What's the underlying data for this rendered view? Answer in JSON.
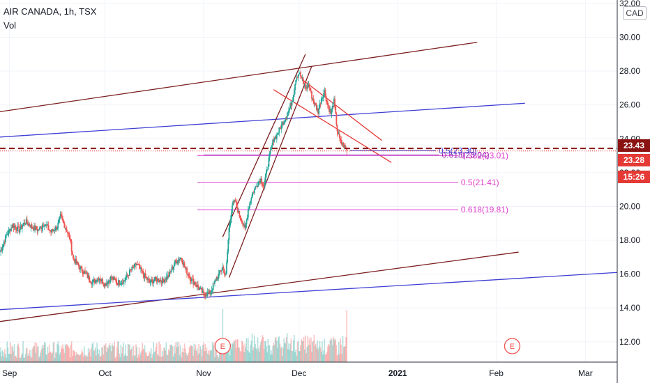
{
  "header": {
    "symbol_line": "AIR CANADA, 1h, TSX",
    "volume_label": "Vol",
    "currency": "CAD"
  },
  "price_tags": [
    {
      "label": "23.43",
      "price": 23.43,
      "color": "#8b1212"
    },
    {
      "label": "23.28",
      "price": 23.28,
      "color": "#e53935"
    },
    {
      "label": "15:26",
      "price": 21.8,
      "color": "#e53935"
    }
  ],
  "chart_data": {
    "type": "candlestick",
    "title": "AIR CANADA, 1h, TSX",
    "y_axis": {
      "ticks": [
        "12.00",
        "14.00",
        "16.00",
        "18.00",
        "20.00",
        "22.00",
        "24.00",
        "26.00",
        "28.00",
        "30.00",
        "32.00"
      ],
      "range": [
        10.8,
        32.2
      ]
    },
    "x_axis": {
      "ticks": [
        {
          "label": "Sep",
          "day": 0
        },
        {
          "label": "Oct",
          "day": 30
        },
        {
          "label": "Nov",
          "day": 61
        },
        {
          "label": "Dec",
          "day": 91
        },
        {
          "label": "2021",
          "day": 122
        },
        {
          "label": "Feb",
          "day": 153
        },
        {
          "label": "Mar",
          "day": 181
        }
      ],
      "range_days": [
        -3,
        191
      ]
    },
    "price_path": [
      {
        "day": -3,
        "price": 17.3
      },
      {
        "day": -1,
        "price": 18.3
      },
      {
        "day": 1,
        "price": 18.9
      },
      {
        "day": 3,
        "price": 18.6
      },
      {
        "day": 5,
        "price": 19.1
      },
      {
        "day": 7,
        "price": 18.8
      },
      {
        "day": 9,
        "price": 18.6
      },
      {
        "day": 11,
        "price": 19.0
      },
      {
        "day": 13,
        "price": 18.5
      },
      {
        "day": 15,
        "price": 18.8
      },
      {
        "day": 16,
        "price": 19.4
      },
      {
        "day": 18,
        "price": 18.6
      },
      {
        "day": 19,
        "price": 18.1
      },
      {
        "day": 20,
        "price": 16.9
      },
      {
        "day": 22,
        "price": 16.4
      },
      {
        "day": 24,
        "price": 16.0
      },
      {
        "day": 26,
        "price": 15.5
      },
      {
        "day": 28,
        "price": 15.8
      },
      {
        "day": 30,
        "price": 15.4
      },
      {
        "day": 32,
        "price": 15.8
      },
      {
        "day": 34,
        "price": 15.5
      },
      {
        "day": 36,
        "price": 15.6
      },
      {
        "day": 38,
        "price": 16.2
      },
      {
        "day": 40,
        "price": 16.6
      },
      {
        "day": 42,
        "price": 16.0
      },
      {
        "day": 44,
        "price": 15.5
      },
      {
        "day": 46,
        "price": 15.7
      },
      {
        "day": 48,
        "price": 15.6
      },
      {
        "day": 50,
        "price": 15.9
      },
      {
        "day": 52,
        "price": 16.7
      },
      {
        "day": 54,
        "price": 17.0
      },
      {
        "day": 55,
        "price": 16.4
      },
      {
        "day": 57,
        "price": 15.7
      },
      {
        "day": 59,
        "price": 15.3
      },
      {
        "day": 61,
        "price": 14.8
      },
      {
        "day": 63,
        "price": 14.9
      },
      {
        "day": 65,
        "price": 15.7
      },
      {
        "day": 67,
        "price": 16.4
      },
      {
        "day": 68,
        "price": 15.9
      },
      {
        "day": 69,
        "price": 18.7
      },
      {
        "day": 70,
        "price": 20.1
      },
      {
        "day": 71,
        "price": 20.3
      },
      {
        "day": 72,
        "price": 19.6
      },
      {
        "day": 73,
        "price": 19.2
      },
      {
        "day": 74,
        "price": 18.6
      },
      {
        "day": 75,
        "price": 19.8
      },
      {
        "day": 76,
        "price": 20.6
      },
      {
        "day": 78,
        "price": 21.4
      },
      {
        "day": 79,
        "price": 21.6
      },
      {
        "day": 80,
        "price": 21.2
      },
      {
        "day": 81,
        "price": 22.3
      },
      {
        "day": 82,
        "price": 23.2
      },
      {
        "day": 83,
        "price": 24.0
      },
      {
        "day": 84,
        "price": 24.2
      },
      {
        "day": 85,
        "price": 24.6
      },
      {
        "day": 86,
        "price": 25.0
      },
      {
        "day": 87,
        "price": 25.3
      },
      {
        "day": 88,
        "price": 25.8
      },
      {
        "day": 89,
        "price": 26.4
      },
      {
        "day": 90,
        "price": 27.6
      },
      {
        "day": 91,
        "price": 27.9
      },
      {
        "day": 92,
        "price": 27.5
      },
      {
        "day": 93,
        "price": 27.0
      },
      {
        "day": 94,
        "price": 27.2
      },
      {
        "day": 95,
        "price": 26.5
      },
      {
        "day": 96,
        "price": 26.0
      },
      {
        "day": 97,
        "price": 25.6
      },
      {
        "day": 98,
        "price": 26.4
      },
      {
        "day": 99,
        "price": 26.8
      },
      {
        "day": 100,
        "price": 26.0
      },
      {
        "day": 101,
        "price": 25.5
      },
      {
        "day": 102,
        "price": 26.2
      },
      {
        "day": 103,
        "price": 24.5
      },
      {
        "day": 104,
        "price": 23.8
      },
      {
        "day": 105,
        "price": 23.6
      },
      {
        "day": 106,
        "price": 23.3
      }
    ],
    "volume_spikes_days": [
      67,
      106
    ],
    "last_price": 23.28,
    "prev_close": 23.43,
    "trendlines": [
      {
        "color": "#7b1e1e",
        "from": {
          "day": -3,
          "price": 25.6
        },
        "to": {
          "day": 147,
          "price": 29.7
        }
      },
      {
        "color": "#3f3fd4",
        "from": {
          "day": -3,
          "price": 24.1
        },
        "to": {
          "day": 162,
          "price": 26.1
        }
      },
      {
        "color": "#7b1e1e",
        "from": {
          "day": -3,
          "price": 13.2
        },
        "to": {
          "day": 160,
          "price": 17.3
        }
      },
      {
        "color": "#3f3fd4",
        "from": {
          "day": -3,
          "price": 13.9
        },
        "to": {
          "day": 191,
          "price": 16.1
        }
      },
      {
        "color": "#7b1e1e",
        "from": {
          "day": 67,
          "price": 18.2
        },
        "to": {
          "day": 93,
          "price": 29.0
        }
      },
      {
        "color": "#7b1e1e",
        "from": {
          "day": 69,
          "price": 15.8
        },
        "to": {
          "day": 95,
          "price": 28.3
        }
      },
      {
        "color": "#e53935",
        "from": {
          "day": 92,
          "price": 27.5
        },
        "to": {
          "day": 117,
          "price": 23.9
        }
      },
      {
        "color": "#e53935",
        "from": {
          "day": 83,
          "price": 26.9
        },
        "to": {
          "day": 120,
          "price": 22.6
        }
      }
    ],
    "fib_levels": [
      {
        "label": "0.382(23.01)",
        "price": 23.01,
        "color": "#e040d0",
        "from_day": 59,
        "to_day": 141
      },
      {
        "label": "0.5(21.41)",
        "price": 21.41,
        "color": "#e040d0",
        "from_day": 59,
        "to_day": 141
      },
      {
        "label": "0.618(19.81)",
        "price": 19.81,
        "color": "#e040d0",
        "from_day": 59,
        "to_day": 141
      },
      {
        "label": "0.618(23.04)",
        "price": 23.04,
        "color": "#9c27b0",
        "from_day": 61,
        "to_day": 135
      },
      {
        "label": "0.5(23.30)",
        "price": 23.3,
        "color": "#3f3fd4",
        "from_day": 107,
        "to_day": 134
      }
    ],
    "earnings_markers": [
      {
        "label": "E",
        "day": 67
      },
      {
        "label": "E",
        "day": 158
      }
    ]
  }
}
